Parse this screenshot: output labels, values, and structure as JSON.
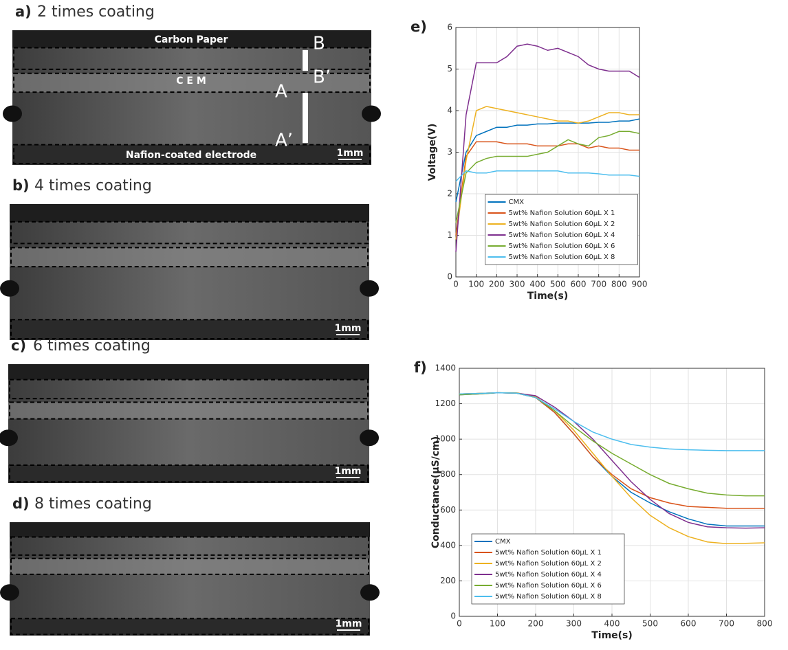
{
  "panels": [
    {
      "label": "a)",
      "title": "2 times coating",
      "annotations": [
        "Carbon Paper",
        "C E M",
        "Nafion-coated electrode",
        "1mm",
        "B",
        "B’",
        "A",
        "A’"
      ]
    },
    {
      "label": "b)",
      "title": "4 times coating",
      "annotations": [
        "1mm"
      ]
    },
    {
      "label": "c)",
      "title": "6 times coating",
      "annotations": [
        "1mm"
      ]
    },
    {
      "label": "d)",
      "title": "8 times coating",
      "annotations": [
        "1mm"
      ]
    }
  ],
  "chart_data": [
    {
      "type": "line",
      "panel_label": "e)",
      "xlabel": "Time(s)",
      "ylabel": "Voltage(V)",
      "x": [
        0,
        50,
        100,
        150,
        200,
        250,
        300,
        350,
        400,
        450,
        500,
        550,
        600,
        650,
        700,
        750,
        800,
        850,
        900
      ],
      "xlim": [
        0,
        900
      ],
      "xticks": [
        0,
        100,
        200,
        300,
        400,
        500,
        600,
        700,
        800,
        900
      ],
      "ylim": [
        0,
        6
      ],
      "yticks": [
        0,
        1,
        2,
        3,
        4,
        5,
        6
      ],
      "grid": true,
      "legend": "lower center",
      "series": [
        {
          "name": "CMX",
          "color": "#0072bd",
          "values": [
            1.8,
            3.0,
            3.4,
            3.5,
            3.6,
            3.6,
            3.65,
            3.65,
            3.68,
            3.68,
            3.7,
            3.7,
            3.7,
            3.7,
            3.72,
            3.72,
            3.75,
            3.75,
            3.8
          ]
        },
        {
          "name": "5wt% Nafion Solution 60μL X 1",
          "color": "#d95319",
          "values": [
            1.0,
            2.9,
            3.25,
            3.25,
            3.25,
            3.2,
            3.2,
            3.2,
            3.15,
            3.15,
            3.15,
            3.2,
            3.2,
            3.1,
            3.15,
            3.1,
            3.1,
            3.05,
            3.05
          ]
        },
        {
          "name": "5wt% Nafion Solution 60μL X 2",
          "color": "#edb120",
          "values": [
            0.9,
            2.8,
            4.0,
            4.1,
            4.05,
            4.0,
            3.95,
            3.9,
            3.85,
            3.8,
            3.75,
            3.75,
            3.7,
            3.75,
            3.85,
            3.95,
            3.95,
            3.9,
            3.9
          ]
        },
        {
          "name": "5wt% Nafion Solution 60μL X 4",
          "color": "#7e2f8e",
          "values": [
            0.6,
            3.9,
            5.15,
            5.15,
            5.15,
            5.3,
            5.55,
            5.6,
            5.55,
            5.45,
            5.5,
            5.4,
            5.3,
            5.1,
            5.0,
            4.95,
            4.95,
            4.95,
            4.8
          ]
        },
        {
          "name": "5wt% Nafion Solution 60μL X 6",
          "color": "#77ac30",
          "values": [
            1.3,
            2.5,
            2.75,
            2.85,
            2.9,
            2.9,
            2.9,
            2.9,
            2.95,
            3.0,
            3.15,
            3.3,
            3.2,
            3.15,
            3.35,
            3.4,
            3.5,
            3.5,
            3.45
          ]
        },
        {
          "name": "5wt% Nafion Solution 60μL X 8",
          "color": "#4dbeee",
          "values": [
            2.3,
            2.55,
            2.5,
            2.5,
            2.55,
            2.55,
            2.55,
            2.55,
            2.55,
            2.55,
            2.55,
            2.5,
            2.5,
            2.5,
            2.48,
            2.45,
            2.45,
            2.45,
            2.42
          ]
        }
      ]
    },
    {
      "type": "line",
      "panel_label": "f)",
      "xlabel": "Time(s)",
      "ylabel": "Conductance(μS/cm)",
      "x": [
        0,
        50,
        100,
        150,
        200,
        250,
        300,
        350,
        400,
        450,
        500,
        550,
        600,
        650,
        700,
        750,
        800
      ],
      "xlim": [
        0,
        800
      ],
      "xticks": [
        0,
        100,
        200,
        300,
        400,
        500,
        600,
        700,
        800
      ],
      "ylim": [
        0,
        1400
      ],
      "yticks": [
        0,
        200,
        400,
        600,
        800,
        1000,
        1200,
        1400
      ],
      "grid": true,
      "legend": "lower left",
      "series": [
        {
          "name": "CMX",
          "color": "#0072bd",
          "values": [
            1255,
            1258,
            1262,
            1260,
            1235,
            1150,
            1030,
            900,
            790,
            700,
            640,
            590,
            550,
            520,
            510,
            510,
            510
          ]
        },
        {
          "name": "5wt% Nafion Solution 60μL X 1",
          "color": "#d95319",
          "values": [
            1255,
            1258,
            1262,
            1260,
            1235,
            1150,
            1030,
            900,
            800,
            720,
            670,
            640,
            620,
            615,
            610,
            610,
            610
          ]
        },
        {
          "name": "5wt% Nafion Solution 60μL X 2",
          "color": "#edb120",
          "values": [
            1255,
            1258,
            1262,
            1262,
            1240,
            1160,
            1050,
            920,
            790,
            670,
            570,
            500,
            450,
            420,
            410,
            412,
            415
          ]
        },
        {
          "name": "5wt% Nafion Solution 60μL X 4",
          "color": "#7e2f8e",
          "values": [
            1250,
            1255,
            1262,
            1260,
            1245,
            1180,
            1100,
            1000,
            880,
            760,
            660,
            580,
            530,
            505,
            500,
            498,
            500
          ]
        },
        {
          "name": "5wt% Nafion Solution 60μL X 6",
          "color": "#77ac30",
          "values": [
            1250,
            1255,
            1262,
            1260,
            1235,
            1160,
            1070,
            990,
            920,
            860,
            800,
            750,
            720,
            695,
            685,
            680,
            680
          ]
        },
        {
          "name": "5wt% Nafion Solution 60μL X 8",
          "color": "#4dbeee",
          "values": [
            1255,
            1258,
            1262,
            1260,
            1235,
            1170,
            1100,
            1040,
            1000,
            970,
            955,
            945,
            940,
            937,
            935,
            935,
            935
          ]
        }
      ]
    }
  ]
}
